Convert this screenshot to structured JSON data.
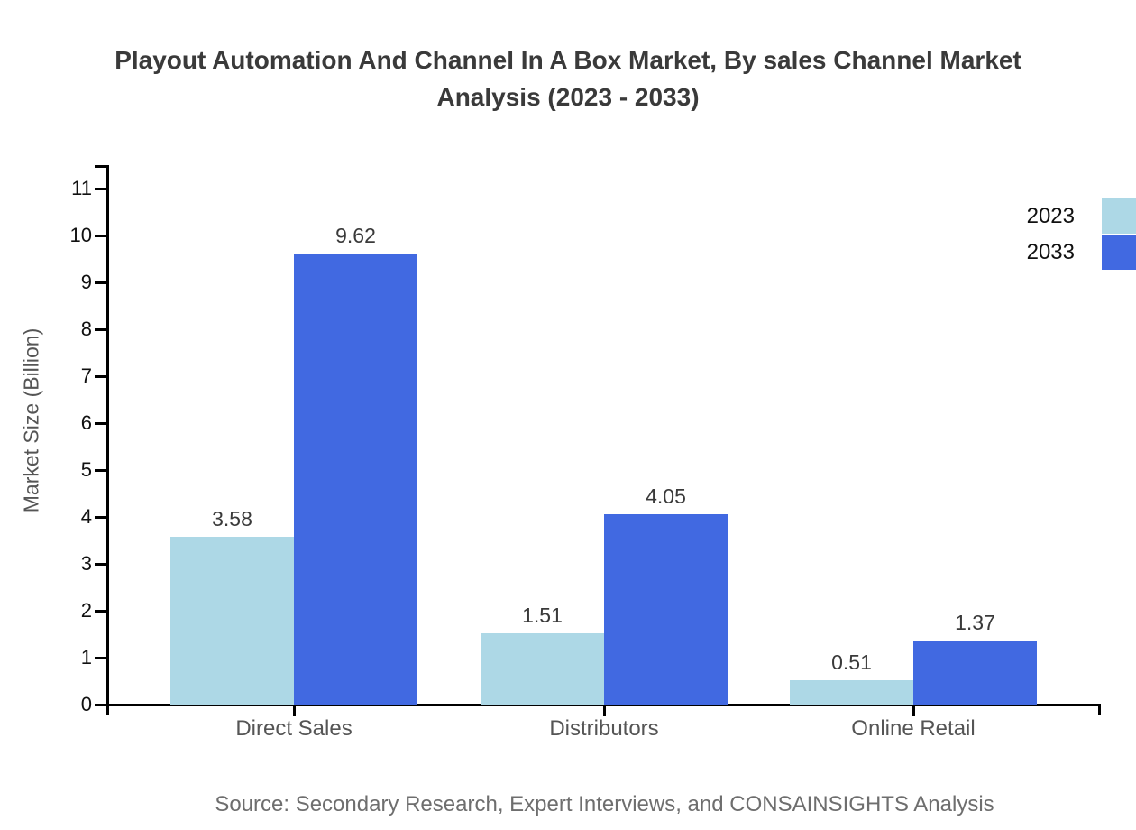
{
  "chart_data": {
    "type": "bar",
    "title": "Playout Automation And Channel In A Box Market, By sales Channel Market Analysis (2023 - 2033)",
    "categories": [
      "Direct Sales",
      "Distributors",
      "Online Retail"
    ],
    "series": [
      {
        "name": "2023",
        "color": "#add8e6",
        "values": [
          3.58,
          1.51,
          0.51
        ]
      },
      {
        "name": "2033",
        "color": "#4169e1",
        "values": [
          9.62,
          4.05,
          1.37
        ]
      }
    ],
    "xlabel": "",
    "ylabel": "Market Size (Billion)",
    "ylim": [
      0,
      11
    ],
    "yticks": [
      0,
      1,
      2,
      3,
      4,
      5,
      6,
      7,
      8,
      9,
      10,
      11
    ],
    "grid": false,
    "value_labels": true,
    "legend_position": "top-right",
    "source": "Source: Secondary Research, Expert Interviews, and CONSAINSIGHTS Analysis"
  },
  "colors": {
    "background": "#ffffff",
    "axis": "#000000",
    "title_text": "#3a3a3a",
    "tick_label_text": "#111111",
    "category_label_text": "#555555",
    "value_label_text": "#3a3a3a",
    "source_text": "#6e6e6e",
    "series_2023": "#add8e6",
    "series_2033": "#4169e1"
  }
}
